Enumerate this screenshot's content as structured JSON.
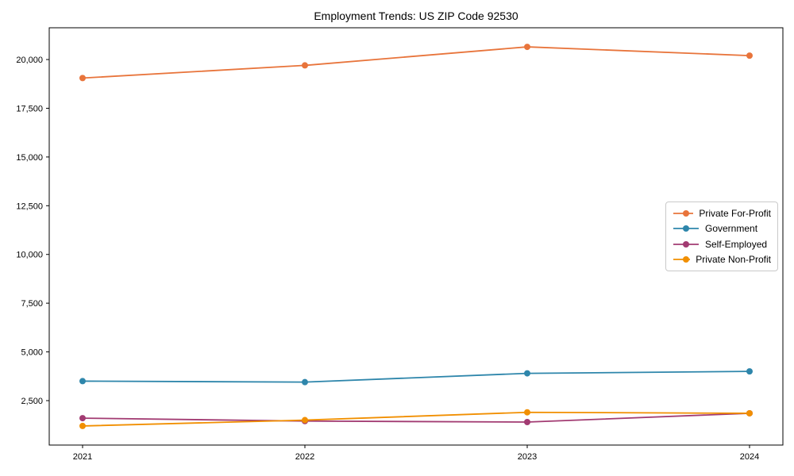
{
  "title": "Employment Trends: US ZIP Code 92530",
  "chart_data": {
    "type": "line",
    "title": "Employment Trends: US ZIP Code 92530",
    "xlabel": "",
    "ylabel": "",
    "x": [
      2021,
      2022,
      2023,
      2024
    ],
    "x_tick_labels": [
      "2021",
      "2022",
      "2023",
      "2024"
    ],
    "y_ticks": [
      2500,
      5000,
      7500,
      10000,
      12500,
      15000,
      17500,
      20000
    ],
    "y_tick_labels": [
      "2,500",
      "5,000",
      "7,500",
      "10,000",
      "12,500",
      "15,000",
      "17,500",
      "20,000"
    ],
    "xlim": [
      2020.85,
      2024.15
    ],
    "ylim": [
      220,
      21630
    ],
    "grid": false,
    "legend_position": "center-right",
    "marker": "circle",
    "series": [
      {
        "name": "Private For-Profit",
        "color": "#E8743B",
        "values": [
          19050,
          19700,
          20650,
          20200
        ]
      },
      {
        "name": "Government",
        "color": "#2E86AB",
        "values": [
          3500,
          3450,
          3900,
          4000
        ]
      },
      {
        "name": "Self-Employed",
        "color": "#A23B72",
        "values": [
          1600,
          1450,
          1400,
          1850
        ]
      },
      {
        "name": "Private Non-Profit",
        "color": "#F18F01",
        "values": [
          1200,
          1500,
          1900,
          1850
        ]
      }
    ]
  }
}
